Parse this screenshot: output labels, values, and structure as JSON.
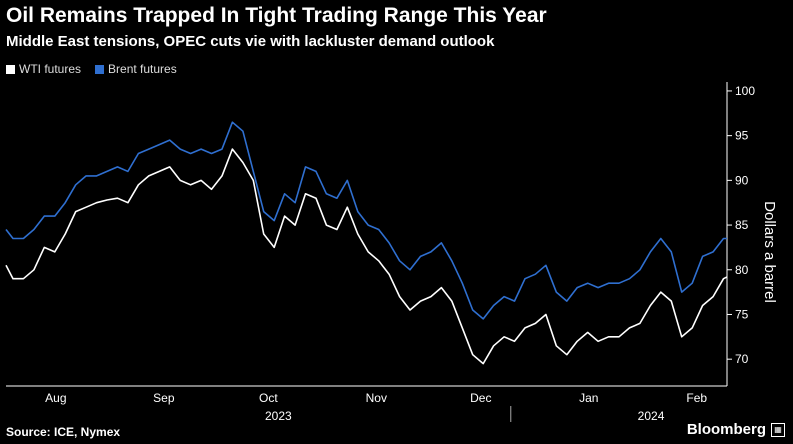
{
  "chart_data": {
    "type": "line",
    "title": "Oil Remains Trapped In Tight Trading Range This Year",
    "subtitle": "Middle East tensions, OPEC cuts vie with lackluster demand outlook",
    "ylabel": "Dollars a barrel",
    "xlabel": "",
    "ylim": [
      67,
      101
    ],
    "yticks": [
      70,
      75,
      80,
      85,
      90,
      95,
      100
    ],
    "x_range": [
      "2023-07-24",
      "2024-02-16"
    ],
    "xtick_labels": [
      {
        "label": "Aug",
        "date": "2023-08-01"
      },
      {
        "label": "Sep",
        "date": "2023-09-01"
      },
      {
        "label": "Oct",
        "date": "2023-10-01"
      },
      {
        "label": "Nov",
        "date": "2023-11-01"
      },
      {
        "label": "Dec",
        "date": "2023-12-01"
      },
      {
        "label": "Jan",
        "date": "2024-01-01"
      },
      {
        "label": "Feb",
        "date": "2024-02-01"
      }
    ],
    "year_labels": [
      {
        "label": "2023",
        "date": "2023-10-01"
      },
      {
        "label": "2024",
        "date": "2024-01-16"
      }
    ],
    "legend_position": "top-left",
    "grid": false,
    "y_axis_side": "right",
    "series": [
      {
        "name": "WTI futures",
        "color": "#ffffff",
        "points": [
          [
            "2023-07-24",
            80.5
          ],
          [
            "2023-07-26",
            79.0
          ],
          [
            "2023-07-29",
            79.0
          ],
          [
            "2023-08-01",
            80.0
          ],
          [
            "2023-08-04",
            82.5
          ],
          [
            "2023-08-07",
            82.0
          ],
          [
            "2023-08-10",
            84.0
          ],
          [
            "2023-08-13",
            86.5
          ],
          [
            "2023-08-16",
            87.0
          ],
          [
            "2023-08-19",
            87.5
          ],
          [
            "2023-08-22",
            87.8
          ],
          [
            "2023-08-25",
            88.0
          ],
          [
            "2023-08-28",
            87.5
          ],
          [
            "2023-08-31",
            89.5
          ],
          [
            "2023-09-03",
            90.5
          ],
          [
            "2023-09-06",
            91.0
          ],
          [
            "2023-09-09",
            91.5
          ],
          [
            "2023-09-12",
            90.0
          ],
          [
            "2023-09-15",
            89.5
          ],
          [
            "2023-09-18",
            90.0
          ],
          [
            "2023-09-21",
            89.0
          ],
          [
            "2023-09-24",
            90.5
          ],
          [
            "2023-09-27",
            93.5
          ],
          [
            "2023-09-30",
            92.0
          ],
          [
            "2023-10-03",
            90.0
          ],
          [
            "2023-10-06",
            84.0
          ],
          [
            "2023-10-09",
            82.5
          ],
          [
            "2023-10-12",
            86.0
          ],
          [
            "2023-10-15",
            85.0
          ],
          [
            "2023-10-18",
            88.5
          ],
          [
            "2023-10-21",
            88.0
          ],
          [
            "2023-10-24",
            85.0
          ],
          [
            "2023-10-27",
            84.5
          ],
          [
            "2023-10-30",
            87.0
          ],
          [
            "2023-11-02",
            84.0
          ],
          [
            "2023-11-05",
            82.0
          ],
          [
            "2023-11-08",
            81.0
          ],
          [
            "2023-11-11",
            79.5
          ],
          [
            "2023-11-14",
            77.0
          ],
          [
            "2023-11-17",
            75.5
          ],
          [
            "2023-11-20",
            76.5
          ],
          [
            "2023-11-23",
            77.0
          ],
          [
            "2023-11-26",
            78.0
          ],
          [
            "2023-11-29",
            76.5
          ],
          [
            "2023-12-02",
            73.5
          ],
          [
            "2023-12-05",
            70.5
          ],
          [
            "2023-12-08",
            69.5
          ],
          [
            "2023-12-11",
            71.5
          ],
          [
            "2023-12-14",
            72.5
          ],
          [
            "2023-12-17",
            72.0
          ],
          [
            "2023-12-20",
            73.5
          ],
          [
            "2023-12-23",
            74.0
          ],
          [
            "2023-12-26",
            75.0
          ],
          [
            "2023-12-29",
            71.5
          ],
          [
            "2024-01-01",
            70.5
          ],
          [
            "2024-01-04",
            72.0
          ],
          [
            "2024-01-07",
            73.0
          ],
          [
            "2024-01-10",
            72.0
          ],
          [
            "2024-01-13",
            72.5
          ],
          [
            "2024-01-16",
            72.5
          ],
          [
            "2024-01-19",
            73.5
          ],
          [
            "2024-01-22",
            74.0
          ],
          [
            "2024-01-25",
            76.0
          ],
          [
            "2024-01-28",
            77.5
          ],
          [
            "2024-01-31",
            76.5
          ],
          [
            "2024-02-03",
            72.5
          ],
          [
            "2024-02-06",
            73.5
          ],
          [
            "2024-02-09",
            76.0
          ],
          [
            "2024-02-12",
            77.0
          ],
          [
            "2024-02-15",
            79.0
          ],
          [
            "2024-02-16",
            79.2
          ]
        ]
      },
      {
        "name": "Brent futures",
        "color": "#2f6fd0",
        "points": [
          [
            "2023-07-24",
            84.5
          ],
          [
            "2023-07-26",
            83.5
          ],
          [
            "2023-07-29",
            83.5
          ],
          [
            "2023-08-01",
            84.5
          ],
          [
            "2023-08-04",
            86.0
          ],
          [
            "2023-08-07",
            86.0
          ],
          [
            "2023-08-10",
            87.5
          ],
          [
            "2023-08-13",
            89.5
          ],
          [
            "2023-08-16",
            90.5
          ],
          [
            "2023-08-19",
            90.5
          ],
          [
            "2023-08-22",
            91.0
          ],
          [
            "2023-08-25",
            91.5
          ],
          [
            "2023-08-28",
            91.0
          ],
          [
            "2023-08-31",
            93.0
          ],
          [
            "2023-09-03",
            93.5
          ],
          [
            "2023-09-06",
            94.0
          ],
          [
            "2023-09-09",
            94.5
          ],
          [
            "2023-09-12",
            93.5
          ],
          [
            "2023-09-15",
            93.0
          ],
          [
            "2023-09-18",
            93.5
          ],
          [
            "2023-09-21",
            93.0
          ],
          [
            "2023-09-24",
            93.5
          ],
          [
            "2023-09-27",
            96.5
          ],
          [
            "2023-09-30",
            95.5
          ],
          [
            "2023-10-03",
            91.0
          ],
          [
            "2023-10-06",
            86.5
          ],
          [
            "2023-10-09",
            85.5
          ],
          [
            "2023-10-12",
            88.5
          ],
          [
            "2023-10-15",
            87.5
          ],
          [
            "2023-10-18",
            91.5
          ],
          [
            "2023-10-21",
            91.0
          ],
          [
            "2023-10-24",
            88.5
          ],
          [
            "2023-10-27",
            88.0
          ],
          [
            "2023-10-30",
            90.0
          ],
          [
            "2023-11-02",
            86.5
          ],
          [
            "2023-11-05",
            85.0
          ],
          [
            "2023-11-08",
            84.5
          ],
          [
            "2023-11-11",
            83.0
          ],
          [
            "2023-11-14",
            81.0
          ],
          [
            "2023-11-17",
            80.0
          ],
          [
            "2023-11-20",
            81.5
          ],
          [
            "2023-11-23",
            82.0
          ],
          [
            "2023-11-26",
            83.0
          ],
          [
            "2023-11-29",
            81.0
          ],
          [
            "2023-12-02",
            78.5
          ],
          [
            "2023-12-05",
            75.5
          ],
          [
            "2023-12-08",
            74.5
          ],
          [
            "2023-12-11",
            76.0
          ],
          [
            "2023-12-14",
            77.0
          ],
          [
            "2023-12-17",
            76.5
          ],
          [
            "2023-12-20",
            79.0
          ],
          [
            "2023-12-23",
            79.5
          ],
          [
            "2023-12-26",
            80.5
          ],
          [
            "2023-12-29",
            77.5
          ],
          [
            "2024-01-01",
            76.5
          ],
          [
            "2024-01-04",
            78.0
          ],
          [
            "2024-01-07",
            78.5
          ],
          [
            "2024-01-10",
            78.0
          ],
          [
            "2024-01-13",
            78.5
          ],
          [
            "2024-01-16",
            78.5
          ],
          [
            "2024-01-19",
            79.0
          ],
          [
            "2024-01-22",
            80.0
          ],
          [
            "2024-01-25",
            82.0
          ],
          [
            "2024-01-28",
            83.5
          ],
          [
            "2024-01-31",
            82.0
          ],
          [
            "2024-02-03",
            77.5
          ],
          [
            "2024-02-06",
            78.5
          ],
          [
            "2024-02-09",
            81.5
          ],
          [
            "2024-02-12",
            82.0
          ],
          [
            "2024-02-15",
            83.5
          ],
          [
            "2024-02-16",
            83.5
          ]
        ]
      }
    ]
  },
  "legend": [
    {
      "label": "WTI futures",
      "color": "#ffffff"
    },
    {
      "label": "Brent futures",
      "color": "#2f6fd0"
    }
  ],
  "footer": {
    "source": "Source: ICE, Nymex",
    "brand": "Bloomberg",
    "brand_icon": "bloomberg-icon"
  },
  "colors": {
    "background": "#000000",
    "axis": "#ffffff",
    "text": "#ffffff"
  }
}
